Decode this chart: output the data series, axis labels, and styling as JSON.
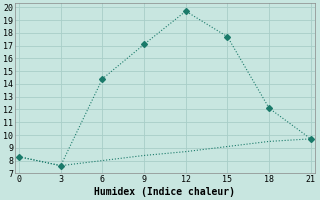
{
  "xlabel": "Humidex (Indice chaleur)",
  "background_color": "#c8e6e0",
  "grid_color": "#a8cec8",
  "line_color": "#1a7a6a",
  "line1_x": [
    0,
    3,
    6,
    9,
    12,
    15,
    18,
    21
  ],
  "line1_y": [
    8.3,
    7.6,
    14.4,
    17.1,
    19.7,
    17.7,
    12.1,
    9.7
  ],
  "line2_x": [
    0,
    3,
    6,
    9,
    12,
    15,
    18,
    21
  ],
  "line2_y": [
    8.3,
    7.6,
    8.0,
    8.4,
    8.7,
    9.1,
    9.5,
    9.7
  ],
  "xlim": [
    -0.3,
    21.3
  ],
  "ylim": [
    7,
    20.3
  ],
  "xticks": [
    0,
    3,
    6,
    9,
    12,
    15,
    18,
    21
  ],
  "yticks": [
    7,
    8,
    9,
    10,
    11,
    12,
    13,
    14,
    15,
    16,
    17,
    18,
    19,
    20
  ],
  "markersize": 3,
  "linewidth": 0.8
}
